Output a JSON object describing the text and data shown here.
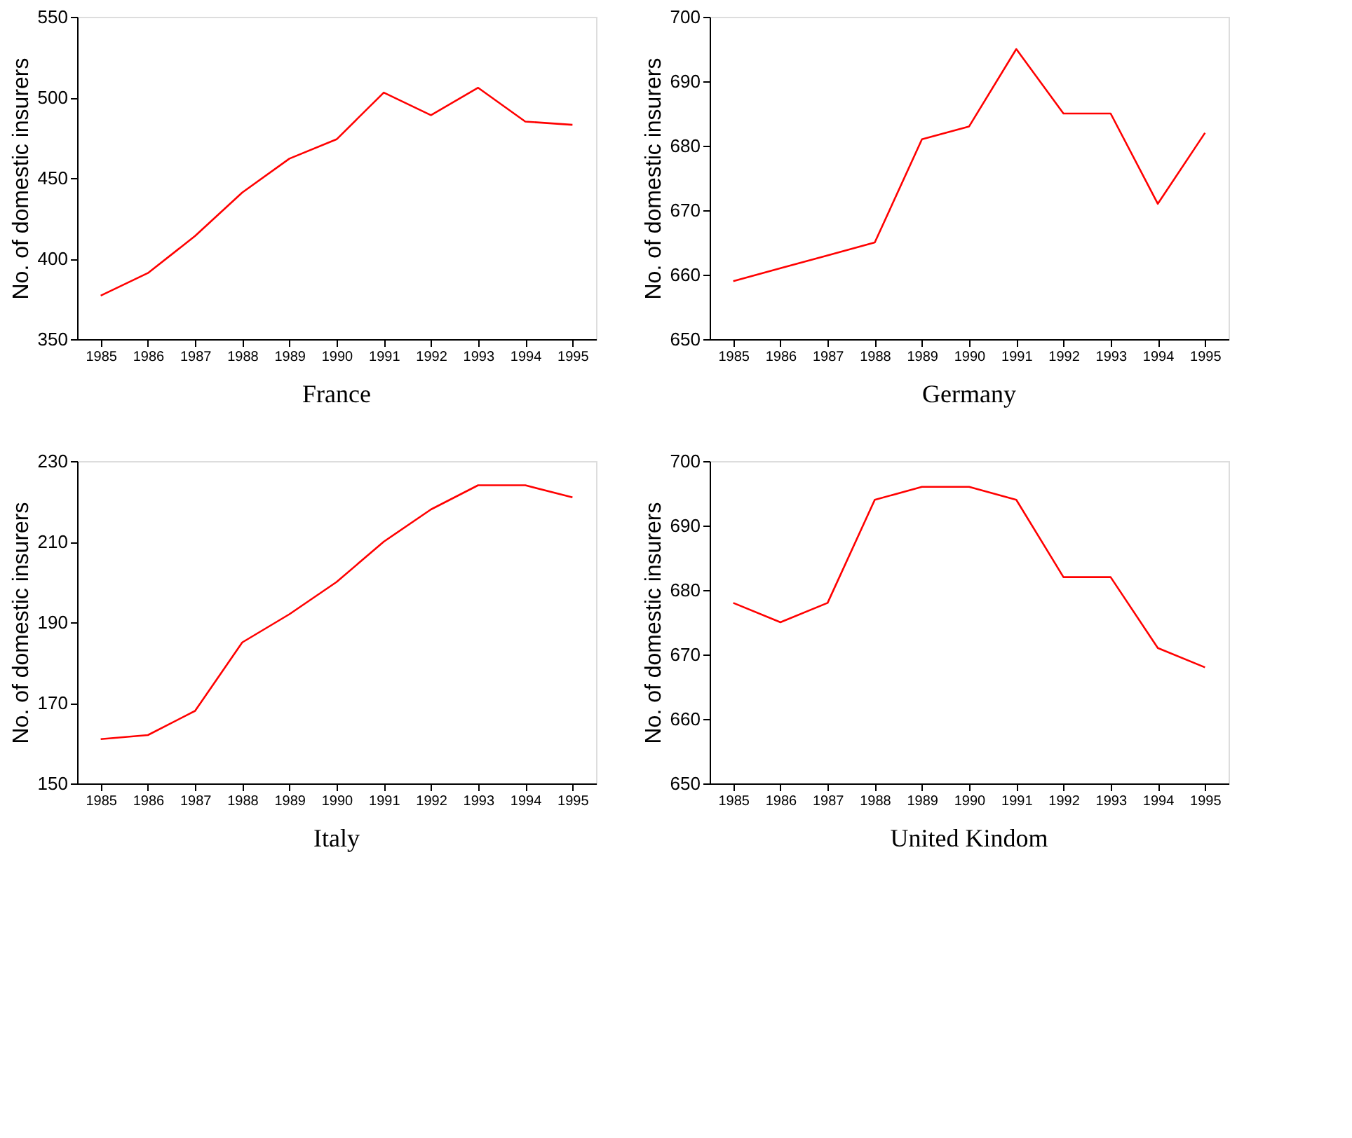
{
  "chart_data": [
    {
      "type": "line",
      "title": "France",
      "ylabel": "No. of domestic insurers",
      "categories": [
        "1985",
        "1986",
        "1987",
        "1988",
        "1989",
        "1990",
        "1991",
        "1992",
        "1993",
        "1994",
        "1995"
      ],
      "ylim": [
        350,
        550
      ],
      "yticks": [
        350,
        400,
        450,
        500,
        550
      ],
      "grid": false,
      "legend": false,
      "series": [
        {
          "color": "#ff0000",
          "values": [
            377,
            391,
            414,
            441,
            462,
            474,
            503,
            489,
            506,
            485,
            483
          ]
        }
      ]
    },
    {
      "type": "line",
      "title": "Germany",
      "ylabel": "No. of domestic insurers",
      "categories": [
        "1985",
        "1986",
        "1987",
        "1988",
        "1989",
        "1990",
        "1991",
        "1992",
        "1993",
        "1994",
        "1995"
      ],
      "ylim": [
        650,
        700
      ],
      "yticks": [
        650,
        660,
        670,
        680,
        690,
        700
      ],
      "grid": false,
      "legend": false,
      "series": [
        {
          "color": "#ff0000",
          "values": [
            659,
            661,
            663,
            665,
            681,
            683,
            695,
            685,
            685,
            671,
            682
          ]
        }
      ]
    },
    {
      "type": "line",
      "title": "Italy",
      "ylabel": "No. of domestic insurers",
      "categories": [
        "1985",
        "1986",
        "1987",
        "1988",
        "1989",
        "1990",
        "1991",
        "1992",
        "1993",
        "1994",
        "1995"
      ],
      "ylim": [
        150,
        230
      ],
      "yticks": [
        150,
        170,
        190,
        210,
        230
      ],
      "grid": false,
      "legend": false,
      "series": [
        {
          "color": "#ff0000",
          "values": [
            161,
            162,
            168,
            185,
            192,
            200,
            210,
            218,
            224,
            224,
            221
          ]
        }
      ]
    },
    {
      "type": "line",
      "title": "United Kindom",
      "ylabel": "No. of domestic insurers",
      "categories": [
        "1985",
        "1986",
        "1987",
        "1988",
        "1989",
        "1990",
        "1991",
        "1992",
        "1993",
        "1994",
        "1995"
      ],
      "ylim": [
        650,
        700
      ],
      "yticks": [
        650,
        660,
        670,
        680,
        690,
        700
      ],
      "grid": false,
      "legend": false,
      "series": [
        {
          "color": "#ff0000",
          "values": [
            678,
            675,
            678,
            694,
            696,
            696,
            694,
            682,
            682,
            671,
            668
          ]
        }
      ]
    }
  ]
}
